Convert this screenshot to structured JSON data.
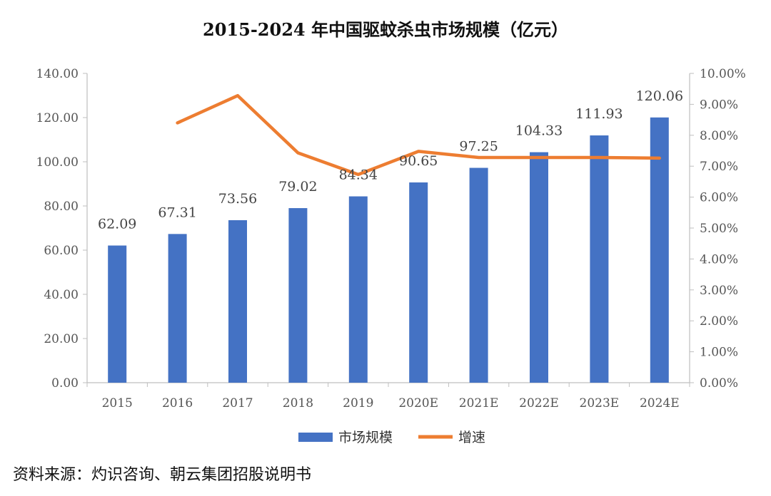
{
  "chart_data": {
    "type": "bar",
    "title": "2015-2024 年中国驱蚊杀虫市场规模（亿元）",
    "categories": [
      "2015",
      "2016",
      "2017",
      "2018",
      "2019",
      "2020E",
      "2021E",
      "2022E",
      "2023E",
      "2024E"
    ],
    "series": [
      {
        "name": "市场规模",
        "type": "bar",
        "axis": "left",
        "color": "#4472C4",
        "values": [
          62.09,
          67.31,
          73.56,
          79.02,
          84.34,
          90.65,
          97.25,
          104.33,
          111.93,
          120.06
        ],
        "labels": [
          "62.09",
          "67.31",
          "73.56",
          "79.02",
          "84.34",
          "90.65",
          "97.25",
          "104.33",
          "111.93",
          "120.06"
        ]
      },
      {
        "name": "增速",
        "type": "line",
        "axis": "right",
        "color": "#ED7D31",
        "values": [
          null,
          8.4,
          9.28,
          7.43,
          6.73,
          7.48,
          7.28,
          7.28,
          7.28,
          7.26
        ]
      }
    ],
    "left_axis": {
      "ylim": [
        0,
        140
      ],
      "ticks": [
        "0.00",
        "20.00",
        "40.00",
        "60.00",
        "80.00",
        "100.00",
        "120.00",
        "140.00"
      ]
    },
    "right_axis": {
      "ylim": [
        0,
        10
      ],
      "unit": "%",
      "ticks": [
        "0.00%",
        "1.00%",
        "2.00%",
        "3.00%",
        "4.00%",
        "5.00%",
        "6.00%",
        "7.00%",
        "8.00%",
        "9.00%",
        "10.00%"
      ]
    },
    "grid": false,
    "legend": {
      "position": "bottom",
      "items": [
        "市场规模",
        "增速"
      ]
    }
  },
  "source_note": "资料来源：灼识咨询、朝云集团招股说明书"
}
